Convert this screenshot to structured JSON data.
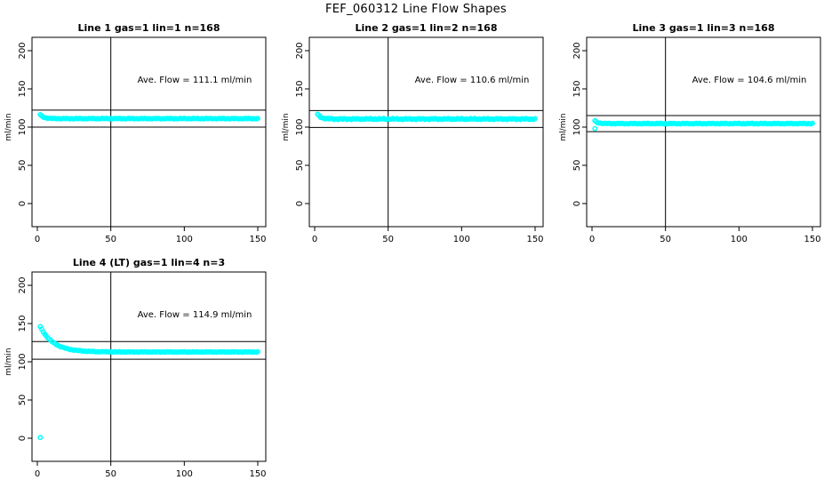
{
  "figure": {
    "title": "FEF_060312  Line Flow Shapes",
    "background": "#ffffff",
    "marker_color": "#00ffff",
    "axis_color": "#000000"
  },
  "chart_data": [
    {
      "type": "scatter",
      "title": "Line 1 gas=1 lin=1 n=168",
      "annotation": "Ave. Flow =  111.1  ml/min",
      "ave_flow_ml_min": 111.1,
      "n": 168,
      "xlabel": "",
      "ylabel": "ml/min",
      "xlim": [
        0,
        150
      ],
      "ylim": [
        0,
        200
      ],
      "x_ticks": [
        0,
        50,
        100,
        150
      ],
      "y_ticks": [
        0,
        50,
        100,
        150,
        200
      ],
      "grid": false,
      "legend": "none",
      "ref_vline_x": 50,
      "ref_hlines_y": [
        122.2,
        100.0
      ],
      "series_model": {
        "description": "flat flow trace, brief higher start then constant near average",
        "x_start": 2,
        "x_end": 150,
        "settle_y": 111.1,
        "start_amp": 5,
        "decay_tau": 2.5,
        "noise": 0.5,
        "outliers": []
      }
    },
    {
      "type": "scatter",
      "title": "Line 2 gas=1 lin=2 n=168",
      "annotation": "Ave. Flow =  110.6  ml/min",
      "ave_flow_ml_min": 110.6,
      "n": 168,
      "xlabel": "",
      "ylabel": "ml/min",
      "xlim": [
        0,
        150
      ],
      "ylim": [
        0,
        200
      ],
      "x_ticks": [
        0,
        50,
        100,
        150
      ],
      "y_ticks": [
        0,
        50,
        100,
        150,
        200
      ],
      "grid": false,
      "legend": "none",
      "ref_vline_x": 50,
      "ref_hlines_y": [
        121.7,
        99.5
      ],
      "series_model": {
        "description": "flat flow trace with slightly wider scatter band",
        "x_start": 2,
        "x_end": 150,
        "settle_y": 110.6,
        "start_amp": 6,
        "decay_tau": 2.5,
        "noise": 0.9,
        "outliers": []
      }
    },
    {
      "type": "scatter",
      "title": "Line 3 gas=1 lin=3 n=168",
      "annotation": "Ave. Flow =  104.6  ml/min",
      "ave_flow_ml_min": 104.6,
      "n": 168,
      "xlabel": "",
      "ylabel": "ml/min",
      "xlim": [
        0,
        150
      ],
      "ylim": [
        0,
        200
      ],
      "x_ticks": [
        0,
        50,
        100,
        150
      ],
      "y_ticks": [
        0,
        50,
        100,
        150,
        200
      ],
      "grid": false,
      "legend": "none",
      "ref_vline_x": 50,
      "ref_hlines_y": [
        115.1,
        94.1
      ],
      "series_model": {
        "description": "flat flow trace just above 100 with one low point at start",
        "x_start": 2,
        "x_end": 150,
        "settle_y": 104.6,
        "start_amp": 3.5,
        "decay_tau": 2.0,
        "noise": 0.6,
        "outliers": [
          [
            2,
            98
          ]
        ]
      }
    },
    {
      "type": "scatter",
      "title": "Line 4 (LT) gas=1 lin=4 n=3",
      "annotation": "Ave. Flow =  114.9  ml/min",
      "ave_flow_ml_min": 114.9,
      "n": 3,
      "xlabel": "",
      "ylabel": "ml/min",
      "xlim": [
        0,
        150
      ],
      "ylim": [
        0,
        200
      ],
      "x_ticks": [
        0,
        50,
        100,
        150
      ],
      "y_ticks": [
        0,
        50,
        100,
        150,
        200
      ],
      "grid": false,
      "legend": "none",
      "ref_vline_x": 50,
      "ref_hlines_y": [
        126.4,
        103.4
      ],
      "series_model": {
        "description": "exponential decay from ~145 settling near 113, one near-zero point at start",
        "x_start": 2,
        "x_end": 150,
        "settle_y": 112.8,
        "start_amp": 33,
        "decay_tau": 9,
        "noise": 0.5,
        "outliers": [
          [
            2,
            1
          ]
        ]
      }
    }
  ]
}
